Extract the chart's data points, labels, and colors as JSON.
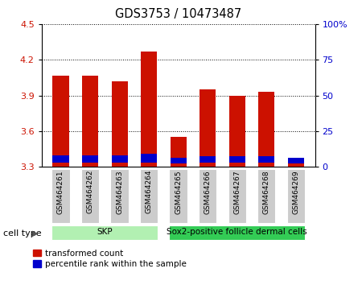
{
  "title": "GDS3753 / 10473487",
  "samples": [
    "GSM464261",
    "GSM464262",
    "GSM464263",
    "GSM464264",
    "GSM464265",
    "GSM464266",
    "GSM464267",
    "GSM464268",
    "GSM464269"
  ],
  "red_values": [
    4.07,
    4.07,
    4.02,
    4.27,
    3.55,
    3.95,
    3.9,
    3.93,
    3.36
  ],
  "blue_bottom": [
    3.335,
    3.335,
    3.335,
    3.335,
    3.33,
    3.335,
    3.335,
    3.335,
    3.33
  ],
  "blue_top": [
    3.395,
    3.395,
    3.395,
    3.41,
    3.375,
    3.39,
    3.39,
    3.39,
    3.375
  ],
  "ylim_left": [
    3.3,
    4.5
  ],
  "ylim_right": [
    0,
    100
  ],
  "yticks_left": [
    3.3,
    3.6,
    3.9,
    4.2,
    4.5
  ],
  "yticks_right": [
    0,
    25,
    50,
    75,
    100
  ],
  "ytick_labels_right": [
    "0",
    "25",
    "50",
    "75",
    "100%"
  ],
  "cell_groups": [
    {
      "label": "SKP",
      "start": 0,
      "end": 4,
      "color": "#b2f0b2"
    },
    {
      "label": "Sox2-positive follicle dermal cells",
      "start": 4,
      "end": 9,
      "color": "#33cc55"
    }
  ],
  "cell_type_label": "cell type",
  "legend_red_label": "transformed count",
  "legend_blue_label": "percentile rank within the sample",
  "bar_width": 0.55,
  "red_color": "#cc1100",
  "blue_color": "#0000cc",
  "left_tick_color": "#cc1100",
  "right_tick_color": "#0000cc",
  "grid_color": "#000000",
  "label_bg_color": "#cccccc"
}
